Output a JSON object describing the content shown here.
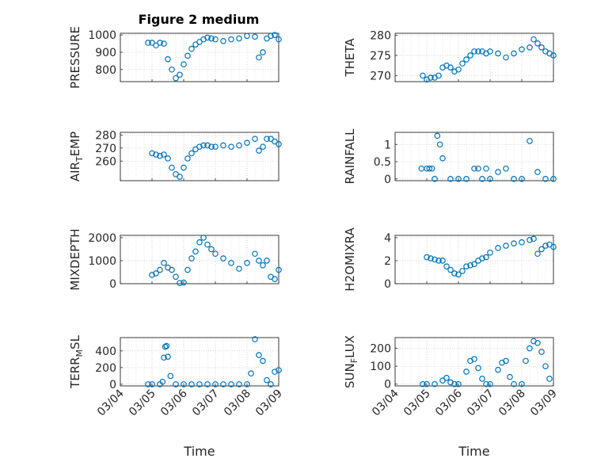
{
  "figure_title": "Figure 2 medium",
  "marker_color": "#0072BD",
  "chart_data": [
    {
      "type": "scatter",
      "ylabel": "PRESSURE",
      "ylabel_main": "PRESSURE",
      "ylabel_sub": "",
      "xlim": [
        "03/04",
        "03/09"
      ],
      "ylim": [
        730,
        1010
      ],
      "yticks": [
        800,
        900,
        1000
      ],
      "grid": true,
      "x": [
        "03/04 21:00",
        "03/05 00:00",
        "03/05 03:00",
        "03/05 06:00",
        "03/05 09:00",
        "03/05 12:00",
        "03/05 15:00",
        "03/05 18:00",
        "03/05 21:00",
        "03/06 00:00",
        "03/06 03:00",
        "03/06 06:00",
        "03/06 09:00",
        "03/06 12:00",
        "03/06 15:00",
        "03/06 18:00",
        "03/06 21:00",
        "03/07 00:00",
        "03/07 06:00",
        "03/07 12:00",
        "03/07 18:00",
        "03/08 00:00",
        "03/08 06:00",
        "03/08 09:00",
        "03/08 12:00",
        "03/08 15:00",
        "03/08 18:00",
        "03/08 21:00",
        "03/09 00:00"
      ],
      "y": [
        955,
        955,
        940,
        955,
        950,
        860,
        800,
        750,
        770,
        830,
        880,
        920,
        945,
        960,
        975,
        985,
        980,
        975,
        965,
        975,
        980,
        995,
        990,
        870,
        900,
        980,
        995,
        1000,
        975
      ]
    },
    {
      "type": "scatter",
      "ylabel": "THETA",
      "ylabel_main": "THETA",
      "ylabel_sub": "",
      "xlim": [
        "03/04",
        "03/09"
      ],
      "ylim": [
        268.5,
        280.5
      ],
      "yticks": [
        270,
        275,
        280
      ],
      "grid": true,
      "x": [
        "03/04 21:00",
        "03/05 00:00",
        "03/05 03:00",
        "03/05 06:00",
        "03/05 09:00",
        "03/05 12:00",
        "03/05 15:00",
        "03/05 18:00",
        "03/05 21:00",
        "03/06 00:00",
        "03/06 03:00",
        "03/06 06:00",
        "03/06 09:00",
        "03/06 12:00",
        "03/06 15:00",
        "03/06 18:00",
        "03/06 21:00",
        "03/07 00:00",
        "03/07 06:00",
        "03/07 12:00",
        "03/07 18:00",
        "03/08 00:00",
        "03/08 06:00",
        "03/08 09:00",
        "03/08 12:00",
        "03/08 15:00",
        "03/08 18:00",
        "03/08 21:00",
        "03/09 00:00"
      ],
      "y": [
        270,
        269,
        269.5,
        269.5,
        270,
        272,
        272.5,
        272,
        271,
        271.5,
        273,
        274,
        275,
        276,
        276,
        276,
        275.5,
        276,
        275.5,
        274.5,
        275.5,
        276.5,
        277,
        279,
        278,
        277,
        276,
        275.5,
        275
      ]
    },
    {
      "type": "scatter",
      "ylabel": "AIR_TEMP",
      "ylabel_main": "AIR",
      "ylabel_sub": "T",
      "ylabel_rest": "EMP",
      "xlim": [
        "03/04",
        "03/09"
      ],
      "ylim": [
        245,
        282
      ],
      "yticks": [
        260,
        270,
        280
      ],
      "grid": true,
      "x": [
        "03/05 00:00",
        "03/05 03:00",
        "03/05 06:00",
        "03/05 09:00",
        "03/05 12:00",
        "03/05 15:00",
        "03/05 18:00",
        "03/05 21:00",
        "03/06 00:00",
        "03/06 03:00",
        "03/06 06:00",
        "03/06 09:00",
        "03/06 12:00",
        "03/06 15:00",
        "03/06 18:00",
        "03/06 21:00",
        "03/07 00:00",
        "03/07 06:00",
        "03/07 12:00",
        "03/07 18:00",
        "03/08 00:00",
        "03/08 06:00",
        "03/08 09:00",
        "03/08 12:00",
        "03/08 15:00",
        "03/08 18:00",
        "03/08 21:00",
        "03/09 00:00"
      ],
      "y": [
        266,
        265,
        264,
        265,
        262,
        255,
        250,
        248,
        255,
        262,
        266,
        269,
        271,
        272,
        272,
        271,
        271,
        272,
        271,
        272,
        274,
        277,
        268,
        271,
        277,
        277,
        275,
        273
      ]
    },
    {
      "type": "scatter",
      "ylabel": "RAINFALL",
      "ylabel_main": "RAINFALL",
      "ylabel_sub": "",
      "xlim": [
        "03/04",
        "03/09"
      ],
      "ylim": [
        -0.05,
        1.35
      ],
      "yticks": [
        0,
        0.5,
        1
      ],
      "yticklabels": [
        "0",
        "0.5",
        "1"
      ],
      "grid": true,
      "x": [
        "03/04 20:00",
        "03/05 00:00",
        "03/05 02:00",
        "03/05 04:00",
        "03/05 06:00",
        "03/05 08:00",
        "03/05 10:00",
        "03/05 12:00",
        "03/05 18:00",
        "03/06 00:00",
        "03/06 06:00",
        "03/06 12:00",
        "03/06 15:00",
        "03/06 18:00",
        "03/06 21:00",
        "03/07 00:00",
        "03/07 06:00",
        "03/07 12:00",
        "03/07 18:00",
        "03/08 00:00",
        "03/08 06:00",
        "03/08 12:00",
        "03/08 18:00",
        "03/09 00:00"
      ],
      "y": [
        0.3,
        0.3,
        0.3,
        0.3,
        0,
        1.25,
        1.0,
        0.6,
        0,
        0,
        0,
        0.3,
        0.3,
        0,
        0.3,
        0,
        0.2,
        0.3,
        0,
        0,
        1.1,
        0.2,
        0,
        0
      ]
    },
    {
      "type": "scatter",
      "ylabel": "MIXDEPTH",
      "ylabel_main": "MIXDEPTH",
      "ylabel_sub": "",
      "xlim": [
        "03/04",
        "03/09"
      ],
      "ylim": [
        0,
        2100
      ],
      "yticks": [
        0,
        1000,
        2000
      ],
      "grid": true,
      "x": [
        "03/05 00:00",
        "03/05 03:00",
        "03/05 06:00",
        "03/05 09:00",
        "03/05 12:00",
        "03/05 15:00",
        "03/05 18:00",
        "03/05 21:00",
        "03/06 00:00",
        "03/06 03:00",
        "03/06 06:00",
        "03/06 09:00",
        "03/06 12:00",
        "03/06 15:00",
        "03/06 18:00",
        "03/06 21:00",
        "03/07 00:00",
        "03/07 06:00",
        "03/07 12:00",
        "03/07 18:00",
        "03/08 00:00",
        "03/08 06:00",
        "03/08 09:00",
        "03/08 12:00",
        "03/08 15:00",
        "03/08 18:00",
        "03/08 21:00",
        "03/09 00:00"
      ],
      "y": [
        380,
        450,
        600,
        900,
        700,
        600,
        300,
        30,
        50,
        600,
        1100,
        1400,
        1800,
        2000,
        1700,
        1500,
        1300,
        1100,
        900,
        650,
        900,
        1300,
        1000,
        800,
        1000,
        300,
        200,
        600
      ]
    },
    {
      "type": "scatter",
      "ylabel": "H2OMIXRA",
      "ylabel_main": "H2OMIXRA",
      "ylabel_sub": "",
      "xlim": [
        "03/04",
        "03/09"
      ],
      "ylim": [
        0,
        4.2
      ],
      "yticks": [
        0,
        2,
        4
      ],
      "grid": true,
      "x": [
        "03/05 00:00",
        "03/05 03:00",
        "03/05 06:00",
        "03/05 09:00",
        "03/05 12:00",
        "03/05 15:00",
        "03/05 18:00",
        "03/05 21:00",
        "03/06 00:00",
        "03/06 03:00",
        "03/06 06:00",
        "03/06 09:00",
        "03/06 12:00",
        "03/06 15:00",
        "03/06 18:00",
        "03/06 21:00",
        "03/07 00:00",
        "03/07 06:00",
        "03/07 12:00",
        "03/07 18:00",
        "03/08 00:00",
        "03/08 06:00",
        "03/08 09:00",
        "03/08 12:00",
        "03/08 15:00",
        "03/08 18:00",
        "03/08 21:00",
        "03/09 00:00"
      ],
      "y": [
        2.3,
        2.2,
        2.1,
        2.0,
        2.0,
        1.5,
        1.2,
        0.9,
        0.8,
        1.1,
        1.5,
        1.6,
        1.7,
        2.0,
        2.2,
        2.3,
        2.7,
        3.1,
        3.3,
        3.5,
        3.6,
        3.8,
        3.9,
        2.6,
        3.0,
        3.3,
        3.4,
        3.2
      ]
    },
    {
      "type": "scatter",
      "ylabel": "TERR_MSL",
      "ylabel_main": "TERR",
      "ylabel_sub": "M",
      "ylabel_rest": "SL",
      "xlim": [
        "03/04",
        "03/09"
      ],
      "ylim": [
        -20,
        560
      ],
      "yticks": [
        0,
        200,
        400
      ],
      "grid": true,
      "xticklabels": [
        "03/04",
        "03/05",
        "03/06",
        "03/07",
        "03/08",
        "03/09"
      ],
      "xlabel": "Time",
      "x": [
        "03/04 21:00",
        "03/05 00:00",
        "03/05 06:00",
        "03/05 08:00",
        "03/05 09:00",
        "03/05 10:00",
        "03/05 11:00",
        "03/05 12:00",
        "03/05 14:00",
        "03/05 18:00",
        "03/06 00:00",
        "03/06 06:00",
        "03/06 12:00",
        "03/06 18:00",
        "03/07 00:00",
        "03/07 06:00",
        "03/07 12:00",
        "03/07 18:00",
        "03/08 00:00",
        "03/08 03:00",
        "03/08 06:00",
        "03/08 09:00",
        "03/08 12:00",
        "03/08 15:00",
        "03/08 18:00",
        "03/08 21:00",
        "03/09 00:00"
      ],
      "y": [
        0,
        0,
        0,
        30,
        320,
        450,
        460,
        330,
        100,
        0,
        0,
        0,
        0,
        0,
        0,
        0,
        0,
        0,
        0,
        130,
        540,
        350,
        280,
        50,
        0,
        150,
        170
      ]
    },
    {
      "type": "scatter",
      "ylabel": "SUN_FLUX",
      "ylabel_main": "SUN",
      "ylabel_sub": "F",
      "ylabel_rest": "LUX",
      "xlim": [
        "03/04",
        "03/09"
      ],
      "ylim": [
        -10,
        260
      ],
      "yticks": [
        0,
        100,
        200
      ],
      "grid": true,
      "xticklabels": [
        "03/04",
        "03/05",
        "03/06",
        "03/07",
        "03/08",
        "03/09"
      ],
      "xlabel": "Time",
      "x": [
        "03/04 21:00",
        "03/05 00:00",
        "03/05 06:00",
        "03/05 12:00",
        "03/05 15:00",
        "03/05 18:00",
        "03/05 21:00",
        "03/06 00:00",
        "03/06 06:00",
        "03/06 09:00",
        "03/06 12:00",
        "03/06 15:00",
        "03/06 18:00",
        "03/06 21:00",
        "03/07 00:00",
        "03/07 06:00",
        "03/07 09:00",
        "03/07 12:00",
        "03/07 15:00",
        "03/07 18:00",
        "03/08 00:00",
        "03/08 03:00",
        "03/08 06:00",
        "03/08 09:00",
        "03/08 12:00",
        "03/08 15:00",
        "03/08 18:00",
        "03/08 21:00"
      ],
      "y": [
        0,
        0,
        0,
        20,
        35,
        10,
        0,
        0,
        70,
        130,
        140,
        90,
        30,
        0,
        0,
        80,
        120,
        130,
        40,
        0,
        0,
        130,
        200,
        240,
        230,
        180,
        100,
        30
      ]
    }
  ]
}
